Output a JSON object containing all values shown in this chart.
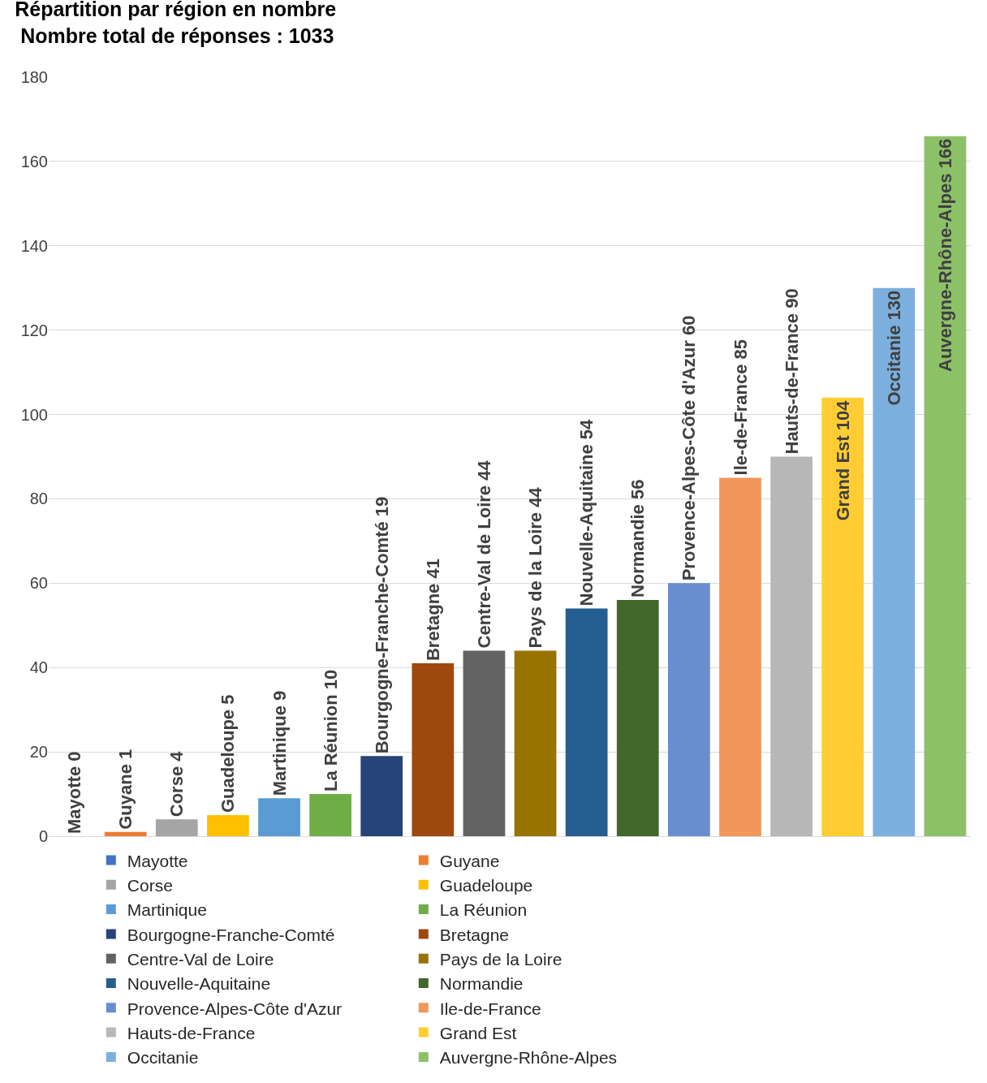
{
  "chart_data": {
    "type": "bar",
    "title": "Répartition par région en nombre\n Nombre total de réponses : 1033",
    "categories": [
      null,
      null,
      null,
      null,
      null,
      null,
      null,
      null,
      null,
      null,
      null,
      null,
      null,
      null,
      null,
      null,
      null,
      null
    ],
    "ylim": [
      0,
      180
    ],
    "yticks": [
      0,
      20,
      40,
      60,
      80,
      100,
      120,
      140,
      160,
      180
    ],
    "grid": "y",
    "legend": "bottom",
    "tick_labels": "y",
    "series": [
      {
        "name": "Mayotte",
        "color": "#4472c4",
        "values": [
          0,
          null,
          null,
          null,
          null,
          null,
          null,
          null,
          null,
          null,
          null,
          null,
          null,
          null,
          null,
          null,
          null,
          null
        ],
        "value_labels": [
          "Mayotte 0",
          null,
          null,
          null,
          null,
          null,
          null,
          null,
          null,
          null,
          null,
          null,
          null,
          null,
          null,
          null,
          null,
          null
        ]
      },
      {
        "name": "Guyane",
        "color": "#ed7d31",
        "values": [
          null,
          1,
          null,
          null,
          null,
          null,
          null,
          null,
          null,
          null,
          null,
          null,
          null,
          null,
          null,
          null,
          null,
          null
        ],
        "value_labels": [
          null,
          "Guyane 1",
          null,
          null,
          null,
          null,
          null,
          null,
          null,
          null,
          null,
          null,
          null,
          null,
          null,
          null,
          null,
          null
        ]
      },
      {
        "name": "Corse",
        "color": "#a5a5a5",
        "values": [
          null,
          null,
          4,
          null,
          null,
          null,
          null,
          null,
          null,
          null,
          null,
          null,
          null,
          null,
          null,
          null,
          null,
          null
        ],
        "value_labels": [
          null,
          null,
          "Corse 4",
          null,
          null,
          null,
          null,
          null,
          null,
          null,
          null,
          null,
          null,
          null,
          null,
          null,
          null,
          null
        ]
      },
      {
        "name": "Guadeloupe",
        "color": "#ffc000",
        "values": [
          null,
          null,
          null,
          5,
          null,
          null,
          null,
          null,
          null,
          null,
          null,
          null,
          null,
          null,
          null,
          null,
          null,
          null
        ],
        "value_labels": [
          null,
          null,
          null,
          "Guadeloupe 5",
          null,
          null,
          null,
          null,
          null,
          null,
          null,
          null,
          null,
          null,
          null,
          null,
          null,
          null
        ]
      },
      {
        "name": "Martinique",
        "color": "#5b9bd5",
        "values": [
          null,
          null,
          null,
          null,
          9,
          null,
          null,
          null,
          null,
          null,
          null,
          null,
          null,
          null,
          null,
          null,
          null,
          null
        ],
        "value_labels": [
          null,
          null,
          null,
          null,
          "Martinique 9",
          null,
          null,
          null,
          null,
          null,
          null,
          null,
          null,
          null,
          null,
          null,
          null,
          null
        ]
      },
      {
        "name": "La Réunion",
        "color": "#70ad47",
        "values": [
          null,
          null,
          null,
          null,
          null,
          10,
          null,
          null,
          null,
          null,
          null,
          null,
          null,
          null,
          null,
          null,
          null,
          null
        ],
        "value_labels": [
          null,
          null,
          null,
          null,
          null,
          "La Réunion 10",
          null,
          null,
          null,
          null,
          null,
          null,
          null,
          null,
          null,
          null,
          null,
          null
        ]
      },
      {
        "name": "Bourgogne-Franche-Comté",
        "color": "#264478",
        "values": [
          null,
          null,
          null,
          null,
          null,
          null,
          19,
          null,
          null,
          null,
          null,
          null,
          null,
          null,
          null,
          null,
          null,
          null
        ],
        "value_labels": [
          null,
          null,
          null,
          null,
          null,
          null,
          "Bourgogne-Franche-Comté 19",
          null,
          null,
          null,
          null,
          null,
          null,
          null,
          null,
          null,
          null,
          null
        ]
      },
      {
        "name": "Bretagne",
        "color": "#9e480e",
        "values": [
          null,
          null,
          null,
          null,
          null,
          null,
          null,
          41,
          null,
          null,
          null,
          null,
          null,
          null,
          null,
          null,
          null,
          null
        ],
        "value_labels": [
          null,
          null,
          null,
          null,
          null,
          null,
          null,
          "Bretagne 41",
          null,
          null,
          null,
          null,
          null,
          null,
          null,
          null,
          null,
          null
        ]
      },
      {
        "name": "Centre-Val de Loire",
        "color": "#636363",
        "values": [
          null,
          null,
          null,
          null,
          null,
          null,
          null,
          null,
          44,
          null,
          null,
          null,
          null,
          null,
          null,
          null,
          null,
          null
        ],
        "value_labels": [
          null,
          null,
          null,
          null,
          null,
          null,
          null,
          null,
          "Centre-Val de Loire 44",
          null,
          null,
          null,
          null,
          null,
          null,
          null,
          null,
          null
        ]
      },
      {
        "name": "Pays de la Loire",
        "color": "#997300",
        "values": [
          null,
          null,
          null,
          null,
          null,
          null,
          null,
          null,
          null,
          44,
          null,
          null,
          null,
          null,
          null,
          null,
          null,
          null
        ],
        "value_labels": [
          null,
          null,
          null,
          null,
          null,
          null,
          null,
          null,
          null,
          "Pays de la Loire 44",
          null,
          null,
          null,
          null,
          null,
          null,
          null,
          null
        ]
      },
      {
        "name": "Nouvelle-Aquitaine",
        "color": "#255e91",
        "values": [
          null,
          null,
          null,
          null,
          null,
          null,
          null,
          null,
          null,
          null,
          54,
          null,
          null,
          null,
          null,
          null,
          null,
          null
        ],
        "value_labels": [
          null,
          null,
          null,
          null,
          null,
          null,
          null,
          null,
          null,
          null,
          "Nouvelle-Aquitaine 54",
          null,
          null,
          null,
          null,
          null,
          null,
          null
        ]
      },
      {
        "name": "Normandie",
        "color": "#43682b",
        "values": [
          null,
          null,
          null,
          null,
          null,
          null,
          null,
          null,
          null,
          null,
          null,
          56,
          null,
          null,
          null,
          null,
          null,
          null
        ],
        "value_labels": [
          null,
          null,
          null,
          null,
          null,
          null,
          null,
          null,
          null,
          null,
          null,
          "Normandie 56",
          null,
          null,
          null,
          null,
          null,
          null
        ]
      },
      {
        "name": "Provence-Alpes-Côte d'Azur",
        "color": "#698ed0",
        "values": [
          null,
          null,
          null,
          null,
          null,
          null,
          null,
          null,
          null,
          null,
          null,
          null,
          60,
          null,
          null,
          null,
          null,
          null
        ],
        "value_labels": [
          null,
          null,
          null,
          null,
          null,
          null,
          null,
          null,
          null,
          null,
          null,
          null,
          "Provence-Alpes-Côte d'Azur 60",
          null,
          null,
          null,
          null,
          null
        ]
      },
      {
        "name": "Ile-de-France",
        "color": "#f1975a",
        "values": [
          null,
          null,
          null,
          null,
          null,
          null,
          null,
          null,
          null,
          null,
          null,
          null,
          null,
          85,
          null,
          null,
          null,
          null
        ],
        "value_labels": [
          null,
          null,
          null,
          null,
          null,
          null,
          null,
          null,
          null,
          null,
          null,
          null,
          null,
          "Ile-de-France 85",
          null,
          null,
          null,
          null
        ]
      },
      {
        "name": "Hauts-de-France",
        "color": "#b7b7b7",
        "values": [
          null,
          null,
          null,
          null,
          null,
          null,
          null,
          null,
          null,
          null,
          null,
          null,
          null,
          null,
          90,
          null,
          null,
          null
        ],
        "value_labels": [
          null,
          null,
          null,
          null,
          null,
          null,
          null,
          null,
          null,
          null,
          null,
          null,
          null,
          null,
          "Hauts-de-France 90",
          null,
          null,
          null
        ]
      },
      {
        "name": "Grand Est",
        "color": "#ffcd33",
        "values": [
          null,
          null,
          null,
          null,
          null,
          null,
          null,
          null,
          null,
          null,
          null,
          null,
          null,
          null,
          null,
          104,
          null,
          null
        ],
        "value_labels": [
          null,
          null,
          null,
          null,
          null,
          null,
          null,
          null,
          null,
          null,
          null,
          null,
          null,
          null,
          null,
          "Grand Est 104",
          null,
          null
        ]
      },
      {
        "name": "Occitanie",
        "color": "#7cafdd",
        "values": [
          null,
          null,
          null,
          null,
          null,
          null,
          null,
          null,
          null,
          null,
          null,
          null,
          null,
          null,
          null,
          null,
          130,
          null
        ],
        "value_labels": [
          null,
          null,
          null,
          null,
          null,
          null,
          null,
          null,
          null,
          null,
          null,
          null,
          null,
          null,
          null,
          null,
          "Occitanie 130",
          null
        ]
      },
      {
        "name": "Auvergne-Rhône-Alpes",
        "color": "#8cc168",
        "values": [
          null,
          null,
          null,
          null,
          null,
          null,
          null,
          null,
          null,
          null,
          null,
          null,
          null,
          null,
          null,
          null,
          null,
          166
        ],
        "value_labels": [
          null,
          null,
          null,
          null,
          null,
          null,
          null,
          null,
          null,
          null,
          null,
          null,
          null,
          null,
          null,
          null,
          null,
          "Auvergne-Rhône-Alpes 166"
        ]
      }
    ]
  }
}
